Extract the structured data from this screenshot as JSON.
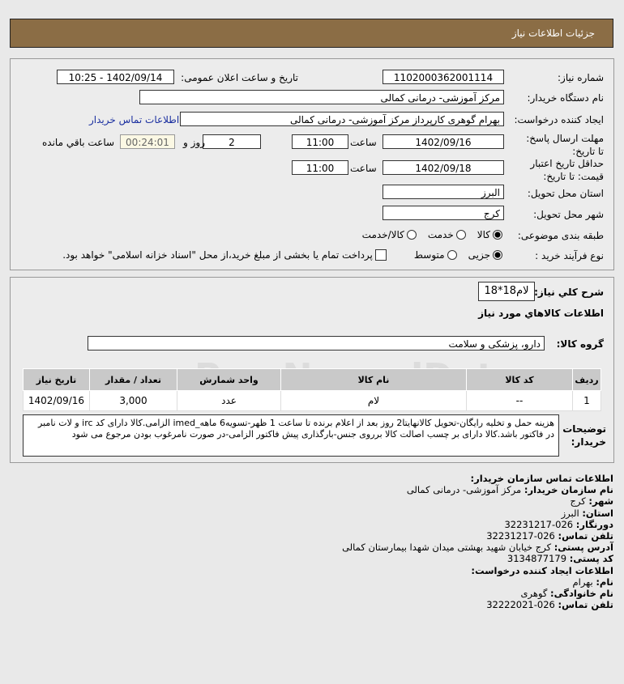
{
  "header": {
    "title": "جزئیات اطلاعات نیاز"
  },
  "form": {
    "need_number_label": "شماره نیاز:",
    "need_number": "1102000362001114",
    "announce_label": "تاریخ و ساعت اعلان عمومی:",
    "announce_value": "1402/09/14 - 10:25",
    "buyer_org_label": "نام دستگاه خریدار:",
    "buyer_org": "مرکز آموزشی- درمانی کمالی",
    "creator_label": "ایجاد کننده درخواست:",
    "creator": "بهرام گوهری کارپرداز مرکز آموزشی- درمانی کمالی",
    "contact_link": "اطلاعات تماس خریدار",
    "reply_deadline_label": "مهلت ارسال پاسخ: تا تاریخ:",
    "reply_date": "1402/09/16",
    "time_label": "ساعت",
    "reply_time": "11:00",
    "days": "2",
    "days_label": "روز و",
    "remaining": "00:24:01",
    "remaining_label": "ساعت باقي مانده",
    "validity_label": "حداقل تاریخ اعتبار قیمت: تا تاریخ:",
    "validity_date": "1402/09/18",
    "validity_time": "11:00",
    "province_label": "استان محل تحویل:",
    "province": "البرز",
    "city_label": "شهر محل تحویل:",
    "city": "کرج",
    "category_label": "طبقه بندی موضوعی:",
    "category_options": [
      "کالا",
      "خدمت",
      "کالا/خدمت"
    ],
    "category_selected": "کالا",
    "process_label": "نوع فرآیند خرید :",
    "process_options": [
      "جزیی",
      "متوسط"
    ],
    "process_selected": "جزیی",
    "payment_note": "پرداخت تمام یا بخشی از مبلغ خرید،از محل \"اسناد خزانه اسلامی\" خواهد بود."
  },
  "summary": {
    "label": "شرح کلي نياز:",
    "value": "لام18*18",
    "goods_title": "اطلاعات کالاهاي مورد نياز",
    "group_label": "گروه کالا:",
    "group": "دارو، پزشکی و سلامت"
  },
  "table": {
    "headers": [
      "ردیف",
      "کد کالا",
      "نام کالا",
      "واحد شمارش",
      "تعداد / مقدار",
      "تاریخ نیاز"
    ],
    "rows": [
      [
        "1",
        "--",
        "لام",
        "عدد",
        "3,000",
        "1402/09/16"
      ]
    ]
  },
  "description": {
    "label": "توضیحات خریدار:",
    "text": "هزینه حمل و تخلیه رایگان-تحویل کالانهایتا2 روز بعد از اعلام برنده تا ساعت 1 ظهر-تسویه6 ماهه_imed الزامی.کالا دارای کد irc و لات نامبر در فاکتور باشد.کالا دارای بر چسب اصالت کالا برروی جنس-بارگذاری پیش فاکتور الزامی-در صورت نامرغوب بودن مرجوع می شود"
  },
  "contact": {
    "title": "اطلاعات تماس سازمان خریدار:",
    "org_label": "نام سازمان خریدار:",
    "org": "مرکز آموزشی- درمانی کمالی",
    "city_label": "شهر:",
    "city": "کرج",
    "province_label": "استان:",
    "province": "البرز",
    "fax_label": "دورنگار:",
    "fax": "026-32231217",
    "phone_label": "تلفن تماس:",
    "phone": "026-32231217",
    "address_label": "آدرس پستی:",
    "address": "کرج خیابان شهید بهشتی میدان شهدا بیمارستان کمالی",
    "postal_label": "کد پستی:",
    "postal": "3134877179",
    "creator_title": "اطلاعات ایجاد کننده درخواست:",
    "name_label": "نام:",
    "name": "بهرام",
    "family_label": "نام خانوادگی:",
    "family": "گوهری",
    "cphone_label": "تلفن تماس:",
    "cphone": "026-32222021"
  },
  "watermark": "ParsNamadData",
  "colors": {
    "header": "#8b6d45",
    "link": "#1a2fa0",
    "timer_bg": "#fbf8e4"
  }
}
